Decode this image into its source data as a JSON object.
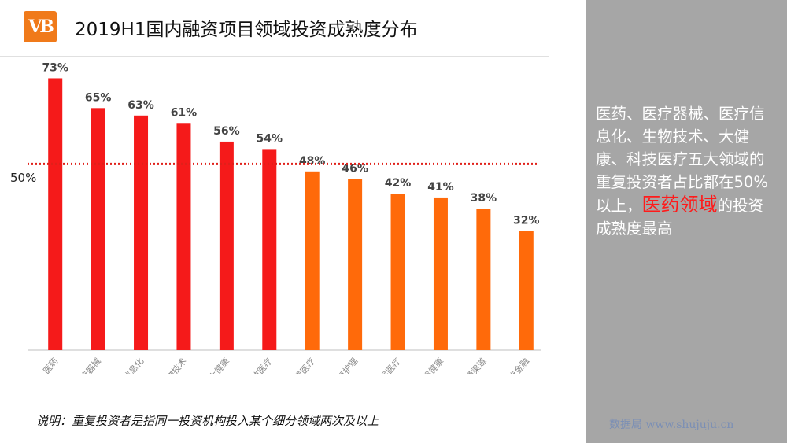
{
  "header": {
    "logo_text": "VB",
    "title": "2019H1国内融资项目领域投资成熟度分布"
  },
  "side_panel": {
    "text_plain": "医药、医疗器械、医疗信息化、生物技术、大健康、科技医疗五大领域的重复投资者占比都在50%以上，",
    "text_highlight": "医药领域",
    "text_tail": "的投资成熟度最高",
    "highlight_color": "#ff1a1a",
    "background": "#a6a6a6"
  },
  "footer": {
    "note": "说明：重复投资者是指同一投资机构投入某个细分领域两次及以上",
    "watermark": "数据局 www.shujuju.cn"
  },
  "chart_data": {
    "type": "bar",
    "title": "2019H1国内融资项目领域投资成熟度分布",
    "categories": [
      "医药",
      "医疗器械",
      "医疗信息化",
      "生物技术",
      "大健康",
      "科技医疗",
      "消费医疗",
      "康复护理",
      "基层医疗",
      "母婴健康",
      "流通渠道",
      "医疗金融"
    ],
    "values": [
      73,
      65,
      63,
      61,
      56,
      54,
      48,
      46,
      42,
      41,
      38,
      32
    ],
    "value_labels": [
      "73%",
      "65%",
      "63%",
      "61%",
      "56%",
      "54%",
      "48%",
      "46%",
      "42%",
      "41%",
      "38%",
      "32%"
    ],
    "ylim": [
      0,
      75
    ],
    "reference_line": {
      "value": 50,
      "label": "50%",
      "style": "dotted",
      "color": "#e0201a"
    },
    "colors": {
      "above_50": "#f51a1a",
      "below_50": "#ff6a0a"
    },
    "grid": false
  }
}
